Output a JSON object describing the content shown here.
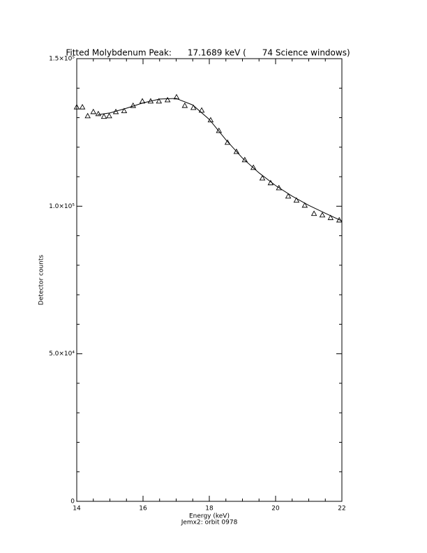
{
  "chart_data": {
    "type": "scatter",
    "title": "Fitted Molybdenum Peak:      17.1689 keV (      74 Science windows)",
    "x_label": "Energy (keV)",
    "subtitle": "Jemx2: orbit 0978",
    "y_label": "Detector counts",
    "xlim": [
      14,
      22
    ],
    "xticks": [
      14,
      16,
      18,
      20,
      22
    ],
    "ylim": [
      0,
      150000
    ],
    "yticks": [
      0,
      {
        "value": 50000,
        "label": "5.0×10⁴"
      },
      {
        "value": 100000,
        "label": "1.0×10⁵"
      },
      {
        "value": 150000,
        "label": "1.5×10⁵"
      }
    ],
    "series": [
      {
        "style": "triangle",
        "color": "#000000",
        "x": [
          14.0,
          14.17,
          14.33,
          14.5,
          14.65,
          14.82,
          14.98,
          15.18,
          15.43,
          15.7,
          15.98,
          16.23,
          16.48,
          16.74,
          17.01,
          17.26,
          17.52,
          17.77,
          18.04,
          18.29,
          18.55,
          18.82,
          19.07,
          19.33,
          19.6,
          19.85,
          20.1,
          20.38,
          20.63,
          20.88,
          21.16,
          21.41,
          21.66,
          21.92
        ],
        "values": [
          133600,
          133600,
          130600,
          132000,
          131300,
          130400,
          130600,
          132000,
          132300,
          134100,
          135600,
          135600,
          135600,
          136000,
          137000,
          134100,
          133400,
          132500,
          129200,
          125600,
          121600,
          118500,
          115700,
          113100,
          109500,
          107900,
          106200,
          103400,
          102000,
          100300,
          97500,
          97000,
          96100,
          95300
        ]
      },
      {
        "style": "line",
        "color": "#000000",
        "x": [
          14.63,
          15.0,
          15.5,
          16.0,
          16.5,
          17.0,
          17.5,
          18.0,
          18.5,
          19.0,
          19.5,
          20.0,
          20.5,
          21.0,
          21.5,
          22.0
        ],
        "values": [
          131000,
          131600,
          133200,
          135000,
          136300,
          136500,
          134300,
          129400,
          122500,
          116300,
          111300,
          107000,
          103400,
          100300,
          97600,
          95000
        ]
      }
    ]
  }
}
